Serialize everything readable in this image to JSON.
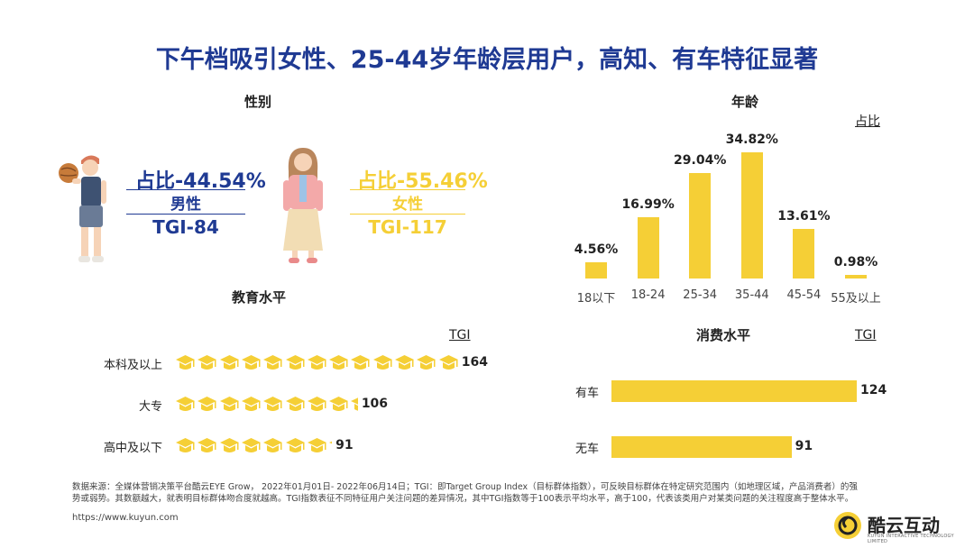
{
  "title": "下午档吸引女性、25-44岁年龄层用户，高知、有车特征显著",
  "colors": {
    "accent_blue": "#1f3a93",
    "accent_yellow": "#f5cf36"
  },
  "gender": {
    "title": "性别",
    "male": {
      "pct_text": "占比-44.54%",
      "label": "男性",
      "tgi_text": "TGI-84"
    },
    "female": {
      "pct_text": "占比-55.46%",
      "label": "女性",
      "tgi_text": "TGI-117"
    }
  },
  "education": {
    "title": "教育水平",
    "tgi_header": "TGI",
    "icon": "graduation-cap-icon"
  },
  "age": {
    "title": "年龄",
    "unit_label": "占比"
  },
  "consumption": {
    "title": "消费水平",
    "tgi_header": "TGI"
  },
  "chart_data": [
    {
      "type": "bar",
      "title": "年龄",
      "ylabel": "占比",
      "categories": [
        "18以下",
        "18-24",
        "25-34",
        "35-44",
        "45-54",
        "55及以上"
      ],
      "values": [
        4.56,
        16.99,
        29.04,
        34.82,
        13.61,
        0.98
      ],
      "value_labels": [
        "4.56%",
        "16.99%",
        "29.04%",
        "34.82%",
        "13.61%",
        "0.98%"
      ],
      "ylim": [
        0,
        36
      ],
      "grid": false
    },
    {
      "type": "bar",
      "orientation": "horizontal",
      "title": "教育水平",
      "xlabel": "TGI",
      "categories": [
        "本科及以上",
        "大专",
        "高中及以下"
      ],
      "values": [
        164,
        106,
        91
      ],
      "value_labels": [
        "164",
        "106",
        "91"
      ],
      "xlim": [
        0,
        164
      ],
      "icon_unit": 12.7
    },
    {
      "type": "bar",
      "orientation": "horizontal",
      "title": "消费水平",
      "xlabel": "TGI",
      "categories": [
        "有车",
        "无车"
      ],
      "values": [
        124,
        91
      ],
      "value_labels": [
        "124",
        "91"
      ],
      "xlim": [
        0,
        124
      ]
    }
  ],
  "footer": {
    "source_line1": "数据来源：全媒体营销决策平台酷云EYE Grow， 2022年01月01日- 2022年06月14日；TGI：即Target Group Index（目标群体指数），可反映目标群体在特定研究范围内（如地理区域，产品消费者）的强",
    "source_line2": "势或弱势。其数额越大，就表明目标群体吻合度就越高。TGI指数表征不同特征用户关注问题的差异情况，其中TGI指数等于100表示平均水平，高于100，代表该类用户对某类问题的关注程度高于整体水平。",
    "url": "https://www.kuyun.com",
    "brand": "酷云互动",
    "brand_sub": "KUYUN INTERACTIVE TECHNOLOGY LIMITED"
  }
}
